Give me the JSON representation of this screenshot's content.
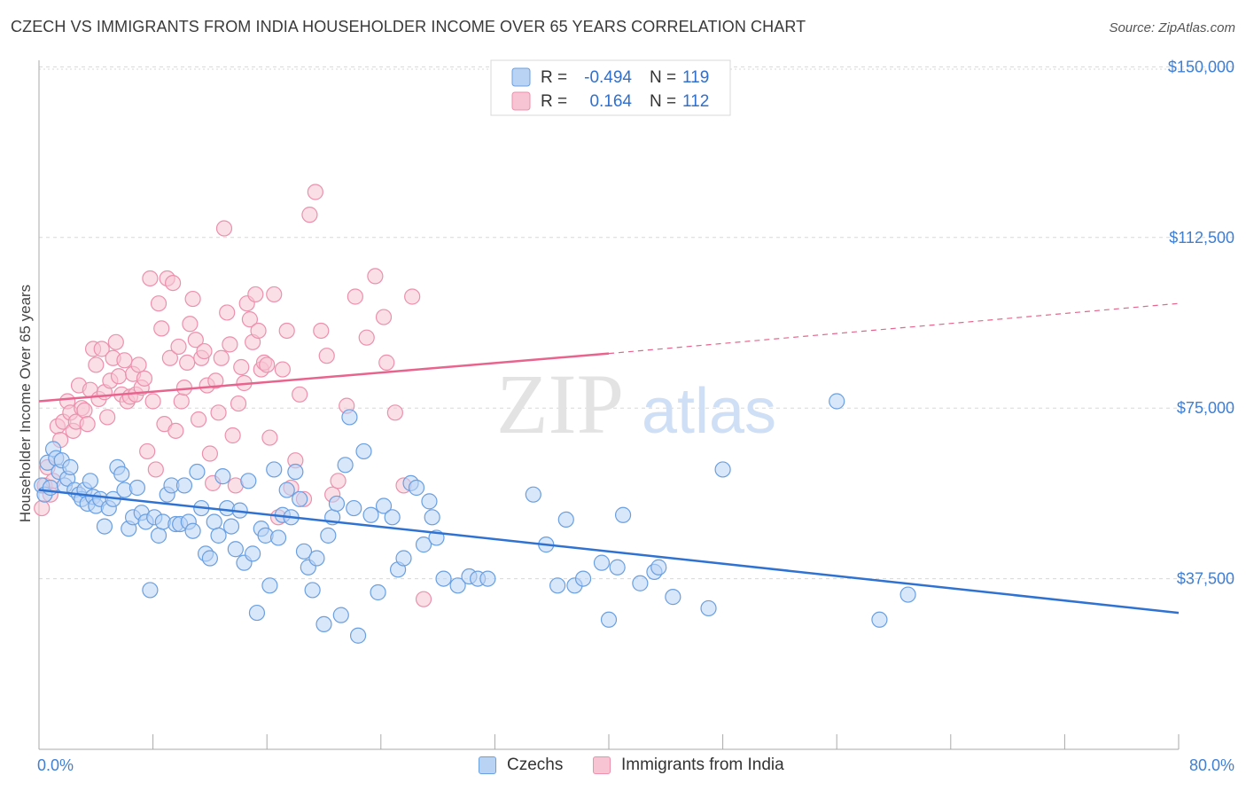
{
  "header": {
    "title": "CZECH VS IMMIGRANTS FROM INDIA HOUSEHOLDER INCOME OVER 65 YEARS CORRELATION CHART",
    "source": "Source: ZipAtlas.com"
  },
  "watermark": {
    "zip": "ZIP",
    "atlas": "atlas"
  },
  "legend_top": {
    "rows": [
      {
        "r_label": "R =",
        "r_value": "-0.494",
        "n_label": "N =",
        "n_value": "119"
      },
      {
        "r_label": "R =",
        "r_value": "0.164",
        "n_label": "N =",
        "n_value": "112"
      }
    ]
  },
  "legend_bottom": {
    "items": [
      {
        "label": "Czechs"
      },
      {
        "label": "Immigrants from India"
      }
    ]
  },
  "colors": {
    "blue_fill": "#b9d3f5",
    "blue_stroke": "#6a9fe0",
    "blue_line": "#2f72d2",
    "pink_fill": "#f7c4d4",
    "pink_stroke": "#ec90ad",
    "pink_line": "#e8648e",
    "axis_label": "#3f7fd4",
    "grid": "#d8d8d8"
  },
  "chart_data": {
    "type": "scatter",
    "title": "CZECH VS IMMIGRANTS FROM INDIA HOUSEHOLDER INCOME OVER 65 YEARS CORRELATION CHART",
    "xlabel": "",
    "ylabel": "Householder Income Over 65 years",
    "xlim": [
      0,
      80
    ],
    "ylim": [
      0,
      153000
    ],
    "x_tick_labels": [
      "0.0%",
      "80.0%"
    ],
    "y_ticks": [
      37500,
      75000,
      112500,
      150000
    ],
    "y_tick_labels": [
      "$37,500",
      "$75,000",
      "$112,500",
      "$150,000"
    ],
    "grid": true,
    "legend_position": "top-center",
    "series": [
      {
        "name": "Czechs",
        "r": -0.494,
        "n": 119,
        "trend": {
          "x0": 0,
          "y0": 57000,
          "x1": 80,
          "y1": 30000
        },
        "points": [
          [
            0.2,
            58000
          ],
          [
            0.4,
            56000
          ],
          [
            0.6,
            63000
          ],
          [
            0.8,
            57500
          ],
          [
            1.0,
            66000
          ],
          [
            1.2,
            64000
          ],
          [
            1.4,
            61000
          ],
          [
            1.6,
            63500
          ],
          [
            1.8,
            58000
          ],
          [
            2.0,
            59500
          ],
          [
            2.2,
            62000
          ],
          [
            2.5,
            57000
          ],
          [
            2.8,
            56000
          ],
          [
            3.0,
            55000
          ],
          [
            3.2,
            57000
          ],
          [
            3.4,
            54000
          ],
          [
            3.6,
            59000
          ],
          [
            3.8,
            55500
          ],
          [
            4.0,
            53500
          ],
          [
            4.3,
            55000
          ],
          [
            4.6,
            49000
          ],
          [
            4.9,
            53000
          ],
          [
            5.2,
            55000
          ],
          [
            5.5,
            62000
          ],
          [
            5.8,
            60500
          ],
          [
            6.0,
            57000
          ],
          [
            6.3,
            48500
          ],
          [
            6.6,
            51000
          ],
          [
            6.9,
            57500
          ],
          [
            7.2,
            52000
          ],
          [
            7.5,
            50000
          ],
          [
            7.8,
            35000
          ],
          [
            8.1,
            51000
          ],
          [
            8.4,
            47000
          ],
          [
            8.7,
            50000
          ],
          [
            9.0,
            56000
          ],
          [
            9.3,
            58000
          ],
          [
            9.6,
            49500
          ],
          [
            9.9,
            49500
          ],
          [
            10.2,
            58000
          ],
          [
            10.5,
            50000
          ],
          [
            10.8,
            48000
          ],
          [
            11.1,
            61000
          ],
          [
            11.4,
            53000
          ],
          [
            11.7,
            43000
          ],
          [
            12.0,
            42000
          ],
          [
            12.3,
            50000
          ],
          [
            12.6,
            47000
          ],
          [
            12.9,
            60000
          ],
          [
            13.2,
            53000
          ],
          [
            13.5,
            49000
          ],
          [
            13.8,
            44000
          ],
          [
            14.1,
            52500
          ],
          [
            14.4,
            41000
          ],
          [
            14.7,
            59000
          ],
          [
            15.0,
            43000
          ],
          [
            15.3,
            30000
          ],
          [
            15.6,
            48500
          ],
          [
            15.9,
            47000
          ],
          [
            16.2,
            36000
          ],
          [
            16.5,
            61500
          ],
          [
            16.8,
            46500
          ],
          [
            17.1,
            51500
          ],
          [
            17.4,
            57000
          ],
          [
            17.7,
            51000
          ],
          [
            18.0,
            61000
          ],
          [
            18.3,
            55000
          ],
          [
            18.6,
            43500
          ],
          [
            18.9,
            40000
          ],
          [
            19.2,
            35000
          ],
          [
            19.5,
            42000
          ],
          [
            20.0,
            27500
          ],
          [
            20.3,
            47000
          ],
          [
            20.6,
            51000
          ],
          [
            20.9,
            54000
          ],
          [
            21.2,
            29500
          ],
          [
            21.5,
            62500
          ],
          [
            21.8,
            73000
          ],
          [
            22.1,
            53000
          ],
          [
            22.4,
            25000
          ],
          [
            22.8,
            65500
          ],
          [
            23.3,
            51500
          ],
          [
            23.8,
            34500
          ],
          [
            24.2,
            53500
          ],
          [
            24.8,
            51000
          ],
          [
            25.2,
            39500
          ],
          [
            25.6,
            42000
          ],
          [
            26.1,
            58500
          ],
          [
            26.5,
            57500
          ],
          [
            27.0,
            45000
          ],
          [
            27.4,
            54500
          ],
          [
            27.6,
            51000
          ],
          [
            27.9,
            46500
          ],
          [
            28.4,
            37500
          ],
          [
            29.4,
            36000
          ],
          [
            30.2,
            38000
          ],
          [
            30.8,
            37500
          ],
          [
            31.5,
            37500
          ],
          [
            34.7,
            56000
          ],
          [
            35.6,
            45000
          ],
          [
            36.4,
            36000
          ],
          [
            37.0,
            50500
          ],
          [
            37.6,
            36000
          ],
          [
            38.2,
            37500
          ],
          [
            39.5,
            41000
          ],
          [
            40.0,
            28500
          ],
          [
            40.6,
            40000
          ],
          [
            41.0,
            51500
          ],
          [
            42.2,
            36500
          ],
          [
            43.2,
            39000
          ],
          [
            43.5,
            40000
          ],
          [
            44.5,
            33500
          ],
          [
            47.0,
            31000
          ],
          [
            48.0,
            61500
          ],
          [
            56.0,
            76500
          ],
          [
            59.0,
            28500
          ],
          [
            61.0,
            34000
          ]
        ]
      },
      {
        "name": "Immigrants from India",
        "r": 0.164,
        "n": 112,
        "trend": {
          "x0": 0,
          "y0": 76500,
          "x1": 40,
          "y1": 87000,
          "x_dash_end": 80,
          "y_dash_end": 98000
        },
        "points": [
          [
            0.2,
            53000
          ],
          [
            0.4,
            58000
          ],
          [
            0.6,
            62000
          ],
          [
            0.8,
            56000
          ],
          [
            1.0,
            59000
          ],
          [
            1.3,
            71000
          ],
          [
            1.5,
            68000
          ],
          [
            1.7,
            72000
          ],
          [
            2.0,
            76500
          ],
          [
            2.2,
            74000
          ],
          [
            2.4,
            70000
          ],
          [
            2.6,
            72000
          ],
          [
            2.8,
            80000
          ],
          [
            3.0,
            75000
          ],
          [
            3.2,
            74500
          ],
          [
            3.4,
            71500
          ],
          [
            3.6,
            79000
          ],
          [
            3.8,
            88000
          ],
          [
            4.0,
            84500
          ],
          [
            4.2,
            77000
          ],
          [
            4.4,
            88000
          ],
          [
            4.6,
            78500
          ],
          [
            4.8,
            73000
          ],
          [
            5.0,
            81000
          ],
          [
            5.2,
            86000
          ],
          [
            5.4,
            89500
          ],
          [
            5.6,
            82000
          ],
          [
            5.8,
            78000
          ],
          [
            6.0,
            85500
          ],
          [
            6.2,
            76500
          ],
          [
            6.4,
            77500
          ],
          [
            6.6,
            82500
          ],
          [
            6.8,
            78000
          ],
          [
            7.0,
            84500
          ],
          [
            7.2,
            79500
          ],
          [
            7.4,
            81500
          ],
          [
            7.6,
            65500
          ],
          [
            7.8,
            103500
          ],
          [
            8.0,
            76500
          ],
          [
            8.2,
            61500
          ],
          [
            8.4,
            98000
          ],
          [
            8.6,
            92500
          ],
          [
            8.8,
            71500
          ],
          [
            9.0,
            103500
          ],
          [
            9.2,
            86000
          ],
          [
            9.4,
            102500
          ],
          [
            9.6,
            70000
          ],
          [
            9.8,
            88500
          ],
          [
            10.0,
            76500
          ],
          [
            10.2,
            79500
          ],
          [
            10.4,
            85000
          ],
          [
            10.6,
            93500
          ],
          [
            10.8,
            99000
          ],
          [
            11.0,
            90000
          ],
          [
            11.2,
            72500
          ],
          [
            11.4,
            86000
          ],
          [
            11.6,
            87500
          ],
          [
            11.8,
            80000
          ],
          [
            12.0,
            65000
          ],
          [
            12.2,
            58500
          ],
          [
            12.4,
            81000
          ],
          [
            12.6,
            74000
          ],
          [
            12.8,
            86000
          ],
          [
            13.0,
            114500
          ],
          [
            13.2,
            96000
          ],
          [
            13.4,
            89000
          ],
          [
            13.6,
            69000
          ],
          [
            13.8,
            58000
          ],
          [
            14.0,
            76000
          ],
          [
            14.2,
            84000
          ],
          [
            14.4,
            80500
          ],
          [
            14.6,
            98000
          ],
          [
            14.8,
            94500
          ],
          [
            15.0,
            89500
          ],
          [
            15.2,
            100000
          ],
          [
            15.4,
            92000
          ],
          [
            15.6,
            83500
          ],
          [
            15.8,
            85000
          ],
          [
            16.0,
            84500
          ],
          [
            16.2,
            68500
          ],
          [
            16.5,
            100000
          ],
          [
            16.8,
            51000
          ],
          [
            17.1,
            83500
          ],
          [
            17.4,
            92000
          ],
          [
            17.7,
            57500
          ],
          [
            18.0,
            63500
          ],
          [
            18.3,
            78000
          ],
          [
            18.6,
            55000
          ],
          [
            19.0,
            117500
          ],
          [
            19.4,
            122500
          ],
          [
            19.8,
            92000
          ],
          [
            20.2,
            86500
          ],
          [
            20.6,
            56000
          ],
          [
            21.0,
            59000
          ],
          [
            21.6,
            75500
          ],
          [
            22.2,
            99500
          ],
          [
            23.0,
            90500
          ],
          [
            23.6,
            104000
          ],
          [
            24.2,
            95000
          ],
          [
            24.4,
            85000
          ],
          [
            25.0,
            74000
          ],
          [
            25.6,
            58000
          ],
          [
            26.2,
            99500
          ],
          [
            27.0,
            33000
          ]
        ]
      }
    ]
  }
}
